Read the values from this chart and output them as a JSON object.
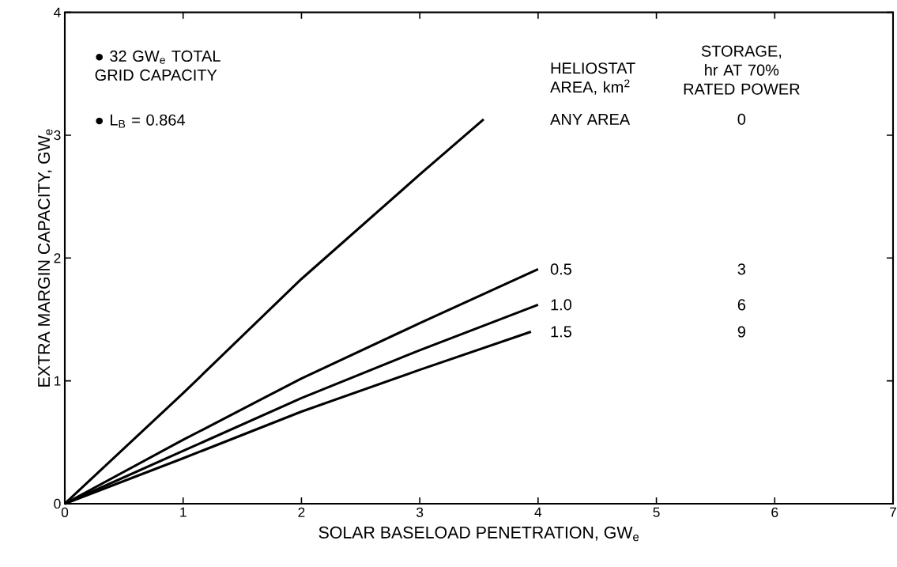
{
  "chart_data": {
    "type": "line",
    "xlabel": "SOLAR BASELOAD PENETRATION, GW$_{e}$",
    "ylabel": "EXTRA MARGIN CAPACITY, GW$_{e}$",
    "xlim": [
      0,
      7
    ],
    "ylim": [
      0,
      4
    ],
    "xticks": [
      0,
      1,
      2,
      3,
      4,
      5,
      6,
      7
    ],
    "yticks": [
      0,
      1,
      2,
      3,
      4
    ],
    "grid": false,
    "legend": false,
    "series": [
      {
        "name": "ANY AREA",
        "color": "#000000",
        "x": [
          0,
          1,
          2,
          3,
          3.54
        ],
        "values": [
          0,
          0.9,
          1.83,
          2.68,
          3.13
        ]
      },
      {
        "name": "0.5",
        "color": "#000000",
        "x": [
          0,
          1,
          2,
          3,
          4
        ],
        "values": [
          0,
          0.52,
          1.02,
          1.47,
          1.91
        ]
      },
      {
        "name": "1.0",
        "color": "#000000",
        "x": [
          0,
          1,
          2,
          3,
          4
        ],
        "values": [
          0,
          0.43,
          0.86,
          1.25,
          1.62
        ]
      },
      {
        "name": "1.5",
        "color": "#000000",
        "x": [
          0,
          1,
          2,
          3,
          3.94
        ],
        "values": [
          0,
          0.37,
          0.75,
          1.09,
          1.4
        ]
      }
    ],
    "annotations": [
      "● 32 GW$_{e}$ TOTAL GRID CAPACITY",
      "● L$_{B}$ = 0.864",
      "HELIOSTAT AREA, km$^{2}$",
      "STORAGE, hr AT 70% RATED POWER",
      "0",
      "3",
      "6",
      "9"
    ]
  }
}
